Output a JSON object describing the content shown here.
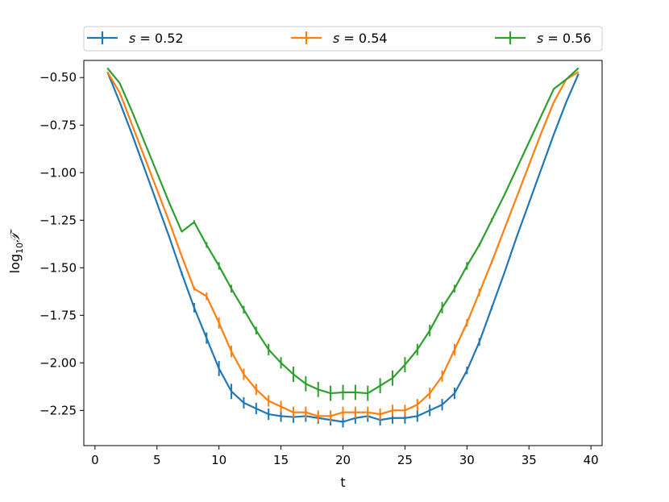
{
  "chart_data": {
    "type": "line",
    "xlabel": "t",
    "ylabel_prefix": "log",
    "ylabel_sub": "10",
    "ylabel_var": "𝒯",
    "xlim": [
      -0.9,
      40.9
    ],
    "ylim": [
      -2.435,
      -0.41
    ],
    "xticks": [
      0,
      5,
      10,
      15,
      20,
      25,
      30,
      35,
      40
    ],
    "yticks": [
      -2.25,
      -2.0,
      -1.75,
      -1.5,
      -1.25,
      -1.0,
      -0.75,
      -0.5
    ],
    "xtick_labels": [
      "0",
      "5",
      "10",
      "15",
      "20",
      "25",
      "30",
      "35",
      "40"
    ],
    "ytick_labels": [
      "−2.25",
      "−2.00",
      "−1.75",
      "−1.50",
      "−1.25",
      "−1.00",
      "−0.75",
      "−0.50"
    ],
    "legend_position": "top, above plot",
    "x": [
      1,
      2,
      3,
      4,
      5,
      6,
      7,
      8,
      9,
      10,
      11,
      12,
      13,
      14,
      15,
      16,
      17,
      18,
      19,
      20,
      21,
      22,
      23,
      24,
      25,
      26,
      27,
      28,
      29,
      30,
      31,
      32,
      33,
      34,
      35,
      36,
      37,
      38,
      39
    ],
    "series": [
      {
        "name": "s = 0.52",
        "legend_var": "s",
        "legend_value": " = 0.52",
        "color": "#1f77b4",
        "values": [
          -0.47,
          -0.63,
          -0.8,
          -0.98,
          -1.16,
          -1.34,
          -1.53,
          -1.71,
          -1.87,
          -2.03,
          -2.15,
          -2.21,
          -2.24,
          -2.27,
          -2.28,
          -2.285,
          -2.28,
          -2.29,
          -2.3,
          -2.31,
          -2.29,
          -2.28,
          -2.3,
          -2.29,
          -2.29,
          -2.28,
          -2.25,
          -2.22,
          -2.16,
          -2.04,
          -1.89,
          -1.71,
          -1.53,
          -1.34,
          -1.16,
          -0.98,
          -0.8,
          -0.63,
          -0.48
        ],
        "errors": [
          0,
          0,
          0,
          0,
          0,
          0,
          0.01,
          0.025,
          0.03,
          0.04,
          0.04,
          0.03,
          0.03,
          0.03,
          0.03,
          0.03,
          0.03,
          0.03,
          0.03,
          0.03,
          0.03,
          0.03,
          0.03,
          0.03,
          0.03,
          0.03,
          0.03,
          0.03,
          0.03,
          0.02,
          0.02,
          0.01,
          0,
          0,
          0,
          0,
          0,
          0,
          0
        ]
      },
      {
        "name": "s = 0.54",
        "legend_var": "s",
        "legend_value": " = 0.54",
        "color": "#ff7f0e",
        "values": [
          -0.47,
          -0.58,
          -0.75,
          -0.92,
          -1.09,
          -1.26,
          -1.44,
          -1.61,
          -1.65,
          -1.79,
          -1.94,
          -2.06,
          -2.14,
          -2.2,
          -2.23,
          -2.26,
          -2.26,
          -2.28,
          -2.28,
          -2.26,
          -2.26,
          -2.26,
          -2.27,
          -2.25,
          -2.25,
          -2.22,
          -2.16,
          -2.07,
          -1.93,
          -1.79,
          -1.63,
          -1.47,
          -1.3,
          -1.13,
          -0.96,
          -0.79,
          -0.63,
          -0.51,
          -0.47
        ],
        "errors": [
          0,
          0,
          0,
          0,
          0,
          0,
          0,
          0.01,
          0.02,
          0.03,
          0.03,
          0.03,
          0.03,
          0.03,
          0.03,
          0.03,
          0.03,
          0.03,
          0.03,
          0.03,
          0.03,
          0.03,
          0.03,
          0.03,
          0.03,
          0.03,
          0.03,
          0.03,
          0.03,
          0.02,
          0.02,
          0.01,
          0,
          0,
          0,
          0,
          0,
          0,
          0
        ]
      },
      {
        "name": "s = 0.56",
        "legend_var": "s",
        "legend_value": " = 0.56",
        "color": "#2ca02c",
        "values": [
          -0.45,
          -0.53,
          -0.68,
          -0.84,
          -1.0,
          -1.16,
          -1.31,
          -1.26,
          -1.38,
          -1.49,
          -1.61,
          -1.72,
          -1.83,
          -1.93,
          -2.0,
          -2.06,
          -2.11,
          -2.14,
          -2.16,
          -2.155,
          -2.155,
          -2.16,
          -2.12,
          -2.08,
          -2.01,
          -1.93,
          -1.83,
          -1.71,
          -1.61,
          -1.49,
          -1.38,
          -1.25,
          -1.12,
          -0.98,
          -0.84,
          -0.7,
          -0.56,
          -0.51,
          -0.45
        ],
        "errors": [
          0,
          0,
          0,
          0,
          0,
          0,
          0,
          0.01,
          0.015,
          0.02,
          0.02,
          0.02,
          0.02,
          0.03,
          0.03,
          0.04,
          0.04,
          0.04,
          0.04,
          0.04,
          0.04,
          0.04,
          0.04,
          0.04,
          0.04,
          0.03,
          0.03,
          0.03,
          0.02,
          0.02,
          0.01,
          0.01,
          0,
          0,
          0,
          0,
          0,
          0,
          0
        ]
      }
    ]
  }
}
